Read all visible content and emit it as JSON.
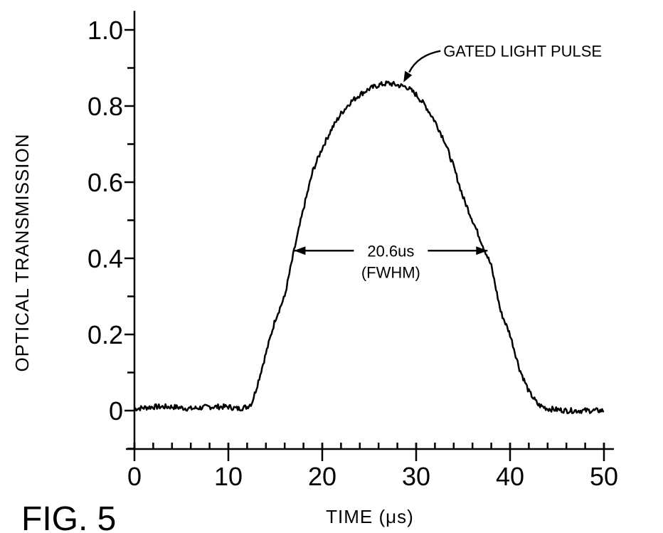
{
  "chart_data": {
    "type": "line",
    "xlabel": "TIME (μs)",
    "ylabel": "OPTICAL TRANSMISSION",
    "xlim": [
      0,
      50
    ],
    "ylim": [
      -0.1,
      1.05
    ],
    "x_ticks": [
      0,
      10,
      20,
      30,
      40,
      50
    ],
    "x_tick_labels": [
      "0",
      "10",
      "20",
      "30",
      "40",
      "50"
    ],
    "y_ticks": [
      0,
      0.2,
      0.4,
      0.6,
      0.8,
      1.0
    ],
    "y_tick_labels": [
      "0",
      "0.2",
      "0.4",
      "0.6",
      "0.8",
      "1.0"
    ],
    "grid": false,
    "series": [
      {
        "x": [
          0,
          2,
          4,
          6,
          8,
          10,
          11,
          12,
          12.5,
          13,
          14,
          15,
          16,
          17,
          18,
          19,
          20,
          21,
          22,
          23,
          24,
          25,
          26,
          27,
          28,
          29,
          30,
          31,
          32,
          33,
          34,
          35,
          36,
          37,
          38,
          39,
          40,
          41,
          42,
          43,
          44,
          46,
          48,
          50
        ],
        "y": [
          0.005,
          0.01,
          0.01,
          0.005,
          0.01,
          0.01,
          0.005,
          0.01,
          0.02,
          0.06,
          0.15,
          0.24,
          0.3,
          0.42,
          0.53,
          0.63,
          0.69,
          0.74,
          0.78,
          0.81,
          0.83,
          0.845,
          0.855,
          0.86,
          0.855,
          0.85,
          0.83,
          0.8,
          0.76,
          0.71,
          0.64,
          0.56,
          0.5,
          0.44,
          0.38,
          0.26,
          0.2,
          0.11,
          0.05,
          0.015,
          0.005,
          0.0,
          0.0,
          0.0
        ]
      }
    ],
    "annotations": {
      "peak_label": "GATED LIGHT PULSE",
      "fwhm_value": "20.6us",
      "fwhm_label": "(FWHM)",
      "fwhm_y": 0.42,
      "fwhm_x_start": 17,
      "fwhm_x_end": 37.6,
      "peak_point": [
        28.5,
        0.855
      ]
    },
    "figure_label": "FIG. 5"
  }
}
